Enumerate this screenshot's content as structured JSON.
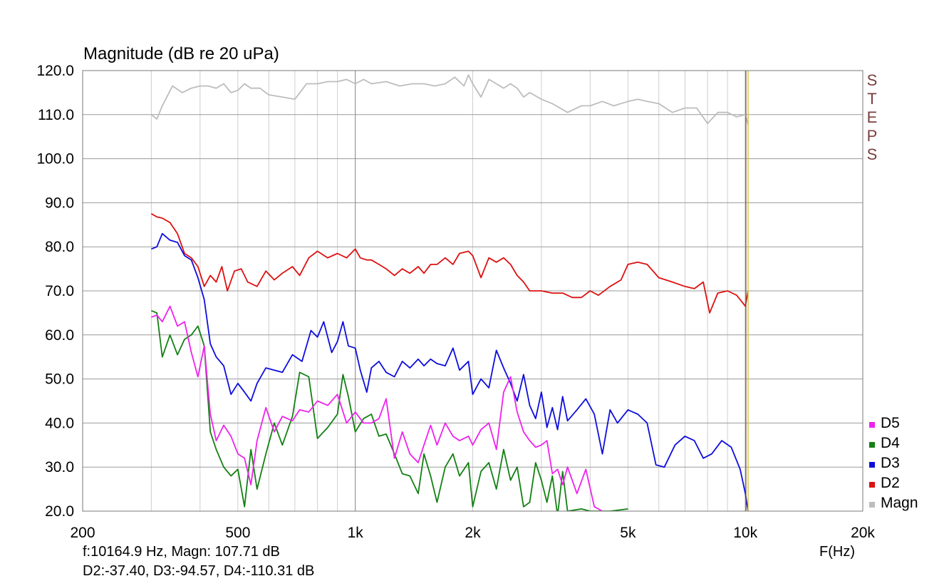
{
  "header": {
    "title": "Magnitude (dB re 20 uPa)"
  },
  "side_label": [
    "S",
    "T",
    "E",
    "P",
    "S"
  ],
  "cursor_readout": {
    "line1": "f:10164.9 Hz, Magn: 107.71 dB",
    "line2": "D2:-37.40, D3:-94.57, D4:-110.31 dB"
  },
  "legend": [
    {
      "name": "D5",
      "color": "#ee22ee"
    },
    {
      "name": "D4",
      "color": "#138013"
    },
    {
      "name": "D3",
      "color": "#0d0ddd"
    },
    {
      "name": "D2",
      "color": "#dd1111"
    },
    {
      "name": "Magn",
      "color": "#bdbdbd"
    }
  ],
  "chart_data": {
    "type": "line",
    "title": "Magnitude (dB re 20 uPa)",
    "xlabel": "F(Hz)",
    "x_scale": "log",
    "xlim": [
      200,
      20000
    ],
    "ylim": [
      20,
      120
    ],
    "grid": true,
    "legend_position": "bottom-right",
    "xticks": [
      {
        "value": 200,
        "label": "200"
      },
      {
        "value": 500,
        "label": "500"
      },
      {
        "value": 1000,
        "label": "1k"
      },
      {
        "value": 2000,
        "label": "2k"
      },
      {
        "value": 5000,
        "label": "5k"
      },
      {
        "value": 10000,
        "label": "10k"
      },
      {
        "value": 20000,
        "label": "20k"
      }
    ],
    "yticks": [
      "120.0",
      "110.0",
      "100.0",
      "90.0",
      "80.0",
      "70.0",
      "60.0",
      "50.0",
      "40.0",
      "30.0",
      "20.0"
    ],
    "cursor_frequency": 10164.9,
    "series": [
      {
        "name": "Magn",
        "color": "#bdbdbd",
        "x": [
          300,
          310,
          320,
          340,
          360,
          380,
          400,
          420,
          440,
          460,
          480,
          500,
          520,
          540,
          570,
          600,
          650,
          700,
          750,
          800,
          850,
          900,
          950,
          1000,
          1050,
          1100,
          1200,
          1300,
          1400,
          1500,
          1600,
          1700,
          1800,
          1900,
          1950,
          2000,
          2100,
          2200,
          2300,
          2400,
          2500,
          2600,
          2700,
          2800,
          3000,
          3200,
          3500,
          3800,
          4000,
          4300,
          4600,
          5000,
          5300,
          5600,
          6000,
          6500,
          7000,
          7500,
          8000,
          8500,
          9000,
          9500,
          10000,
          10160
        ],
        "y": [
          110,
          109,
          112,
          116.5,
          115,
          116,
          116.5,
          116.5,
          116,
          117,
          115,
          115.5,
          117,
          116,
          116,
          114.5,
          114,
          113.5,
          117,
          117,
          117.5,
          117.5,
          118,
          117,
          118,
          117,
          117.5,
          116.5,
          117,
          117,
          116.5,
          117,
          118.5,
          116.5,
          119,
          117,
          114,
          118,
          117,
          116,
          117,
          116,
          114,
          115,
          113.5,
          112.5,
          110.5,
          112,
          112,
          113,
          112,
          113,
          113.5,
          113,
          112.5,
          110.5,
          111.5,
          111.5,
          108,
          110.5,
          110.5,
          109.5,
          110,
          107.7
        ]
      },
      {
        "name": "D2",
        "color": "#dd1111",
        "x": [
          300,
          310,
          320,
          335,
          350,
          365,
          380,
          395,
          410,
          425,
          440,
          455,
          470,
          490,
          510,
          530,
          560,
          590,
          620,
          650,
          690,
          720,
          760,
          800,
          850,
          900,
          950,
          1000,
          1030,
          1070,
          1100,
          1150,
          1200,
          1260,
          1320,
          1380,
          1450,
          1500,
          1560,
          1620,
          1700,
          1780,
          1850,
          1950,
          2000,
          2100,
          2200,
          2300,
          2400,
          2500,
          2600,
          2700,
          2800,
          3000,
          3200,
          3400,
          3600,
          3800,
          4000,
          4200,
          4500,
          4800,
          5000,
          5300,
          5600,
          6000,
          6500,
          7000,
          7400,
          7800,
          8100,
          8500,
          9000,
          9500,
          10000,
          10160
        ],
        "y": [
          87.5,
          86.8,
          86.5,
          85.5,
          83,
          78.5,
          77.5,
          75.5,
          71,
          73.5,
          72,
          75.5,
          70,
          74.5,
          75,
          72,
          71,
          74.5,
          72.5,
          74,
          75.5,
          73.5,
          77.5,
          79,
          77.5,
          78.5,
          77.5,
          79.5,
          77.5,
          77,
          77,
          76,
          75,
          73.5,
          75,
          74,
          75.5,
          74,
          76,
          76,
          77.5,
          76,
          78.5,
          79,
          78,
          73,
          77.5,
          76.5,
          77.5,
          76,
          73.5,
          72,
          70,
          70,
          69.5,
          69.5,
          68.5,
          68.5,
          70,
          69,
          71,
          72.5,
          76,
          76.5,
          76,
          73,
          72,
          71,
          70.5,
          72,
          65,
          69.5,
          70,
          69,
          66.5,
          70
        ]
      },
      {
        "name": "D3",
        "color": "#0d0ddd",
        "x": [
          300,
          310,
          320,
          335,
          350,
          365,
          380,
          395,
          410,
          425,
          440,
          460,
          480,
          500,
          520,
          540,
          560,
          590,
          620,
          650,
          690,
          730,
          770,
          800,
          830,
          870,
          900,
          930,
          960,
          1000,
          1030,
          1070,
          1100,
          1150,
          1200,
          1260,
          1320,
          1380,
          1450,
          1500,
          1560,
          1620,
          1700,
          1780,
          1850,
          1950,
          2000,
          2100,
          2200,
          2300,
          2400,
          2500,
          2600,
          2700,
          2800,
          2900,
          3000,
          3100,
          3200,
          3300,
          3400,
          3500,
          3700,
          3900,
          4100,
          4300,
          4500,
          4700,
          5000,
          5300,
          5600,
          5900,
          6200,
          6600,
          7000,
          7400,
          7800,
          8200,
          8700,
          9200,
          9700,
          10000,
          10160
        ],
        "y": [
          79.5,
          80,
          83,
          81.5,
          81,
          78,
          77,
          73,
          68,
          58,
          55,
          53,
          46.5,
          49,
          47,
          45,
          49,
          52.5,
          52,
          51.5,
          55.5,
          54,
          61,
          59.5,
          63,
          56,
          58.5,
          63,
          57.5,
          57,
          52,
          47,
          52.5,
          54,
          51.5,
          50.5,
          54,
          52.5,
          54.5,
          53,
          54.5,
          53.5,
          53,
          57,
          52,
          54,
          46.5,
          50,
          48,
          56.5,
          52.5,
          49,
          45,
          51,
          44,
          41,
          47,
          39,
          43.5,
          38.5,
          46,
          40.5,
          43,
          45.5,
          42,
          33,
          43,
          40,
          43,
          42,
          40,
          30.5,
          30,
          35,
          37,
          36,
          32,
          33,
          36,
          34.5,
          29.5,
          24,
          20
        ]
      },
      {
        "name": "D4",
        "color": "#138013",
        "x": [
          300,
          310,
          320,
          335,
          350,
          365,
          380,
          395,
          410,
          425,
          440,
          460,
          480,
          500,
          520,
          540,
          560,
          590,
          620,
          650,
          690,
          720,
          760,
          800,
          850,
          900,
          930,
          960,
          1000,
          1050,
          1100,
          1150,
          1200,
          1260,
          1320,
          1380,
          1450,
          1500,
          1560,
          1620,
          1700,
          1780,
          1850,
          1950,
          2000,
          2100,
          2200,
          2300,
          2400,
          2500,
          2600,
          2700,
          2800,
          2900,
          3000,
          3100,
          3200,
          3300,
          3400,
          3500,
          3800,
          4000,
          4200,
          4500,
          5000
        ],
        "y": [
          65.5,
          65,
          55,
          60,
          55.5,
          59,
          60,
          62,
          57.5,
          38,
          34,
          30,
          28,
          29.5,
          21,
          34,
          25,
          33,
          40,
          35,
          41.5,
          51.5,
          50.5,
          36.5,
          39,
          42,
          51,
          46,
          38,
          41,
          42,
          37,
          37.5,
          33,
          28.5,
          28,
          24,
          33,
          28,
          22,
          30,
          33,
          28,
          31,
          21,
          29,
          31,
          25,
          34,
          27,
          30,
          21,
          22,
          31,
          27,
          22,
          28,
          19,
          29,
          20,
          20.5,
          20,
          20,
          20,
          20.5
        ]
      },
      {
        "name": "D5",
        "color": "#ee22ee",
        "x": [
          300,
          310,
          320,
          335,
          350,
          365,
          380,
          395,
          410,
          425,
          440,
          460,
          480,
          500,
          520,
          540,
          560,
          590,
          620,
          650,
          690,
          720,
          760,
          800,
          850,
          900,
          950,
          1000,
          1050,
          1100,
          1150,
          1200,
          1260,
          1320,
          1380,
          1450,
          1500,
          1560,
          1620,
          1700,
          1780,
          1850,
          1950,
          2000,
          2100,
          2200,
          2300,
          2400,
          2500,
          2600,
          2700,
          2800,
          2900,
          3000,
          3100,
          3200,
          3300,
          3400,
          3500,
          3700,
          3900,
          4100,
          4300
        ],
        "y": [
          64,
          64.5,
          63,
          66.5,
          62,
          63,
          56,
          50.5,
          57.5,
          42,
          36,
          39.5,
          37,
          33,
          32,
          26,
          36,
          43.5,
          38,
          41.5,
          40.5,
          43,
          42.5,
          45,
          44,
          46.5,
          40,
          42.5,
          40,
          40,
          41,
          45.5,
          32,
          38,
          33,
          31,
          35,
          39.5,
          35,
          40,
          37,
          36,
          37,
          35,
          38.5,
          40,
          34,
          47,
          50.5,
          42.5,
          38,
          36,
          34.5,
          35,
          36,
          28.5,
          29.5,
          26,
          30,
          24,
          29.5,
          21,
          20
        ]
      }
    ]
  }
}
